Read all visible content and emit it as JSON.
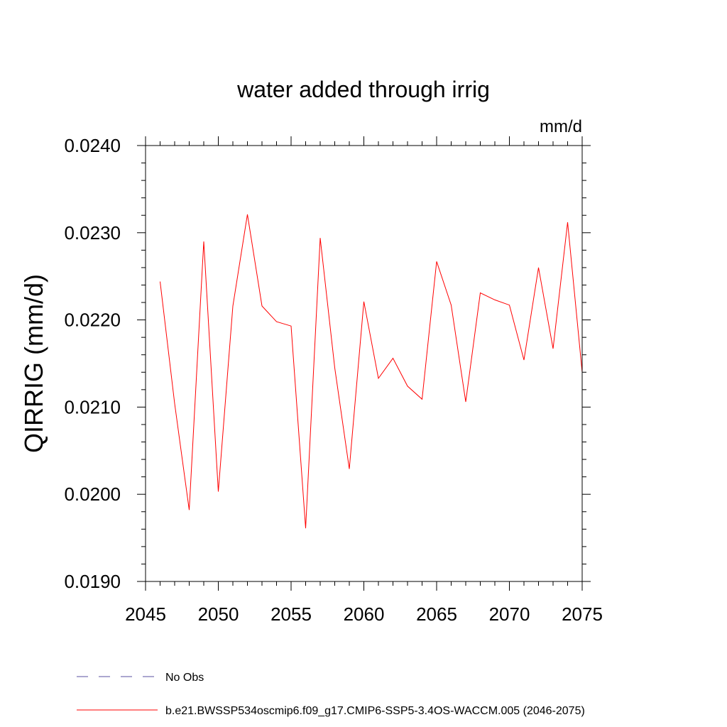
{
  "chart_data": {
    "type": "line",
    "title": "water added through irrig",
    "units_label": "mm/d",
    "xlabel": "",
    "ylabel": "QIRRIG  (mm/d)",
    "xlim": [
      2045,
      2075
    ],
    "ylim": [
      0.019,
      0.024
    ],
    "x_ticks": [
      2045,
      2050,
      2055,
      2060,
      2065,
      2070,
      2075
    ],
    "y_ticks": [
      0.019,
      0.02,
      0.021,
      0.022,
      0.023,
      0.024
    ],
    "x_tick_labels": [
      "2045",
      "2050",
      "2055",
      "2060",
      "2065",
      "2070",
      "2075"
    ],
    "y_tick_labels": [
      "0.0190",
      "0.0200",
      "0.0210",
      "0.0220",
      "0.0230",
      "0.0240"
    ],
    "series": [
      {
        "name": "b.e21.BWSSP534oscmip6.f09_g17.CMIP6-SSP5-3.4OS-WACCM.005 (2046-2075)",
        "color": "#ff0000",
        "style": "solid",
        "x": [
          2046,
          2047,
          2048,
          2049,
          2050,
          2051,
          2052,
          2053,
          2054,
          2055,
          2056,
          2057,
          2058,
          2059,
          2060,
          2061,
          2062,
          2063,
          2064,
          2065,
          2066,
          2067,
          2068,
          2069,
          2070,
          2071,
          2072,
          2073,
          2074,
          2075
        ],
        "values": [
          0.02244,
          0.02104,
          0.01982,
          0.0229,
          0.02003,
          0.02216,
          0.02321,
          0.02216,
          0.02198,
          0.02193,
          0.01961,
          0.02294,
          0.02145,
          0.02029,
          0.02221,
          0.02133,
          0.02156,
          0.02124,
          0.02109,
          0.02267,
          0.02217,
          0.02106,
          0.02231,
          0.02223,
          0.02217,
          0.02154,
          0.0226,
          0.02167,
          0.02312,
          0.0214
        ]
      }
    ],
    "legend": [
      {
        "label": "No Obs",
        "color": "#5a4fa0",
        "style": "dashed"
      },
      {
        "label": "b.e21.BWSSP534oscmip6.f09_g17.CMIP6-SSP5-3.4OS-WACCM.005 (2046-2075)",
        "color": "#ff0000",
        "style": "solid"
      }
    ],
    "legend_position": "bottom-left"
  }
}
